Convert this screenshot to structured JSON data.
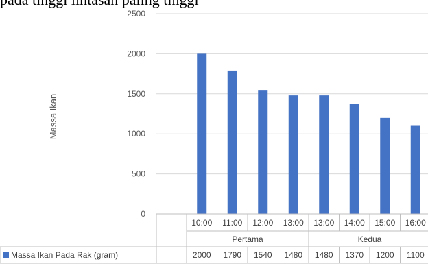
{
  "header": {
    "caption": "pada tinggi lintasan paling tinggi"
  },
  "chart_data": {
    "type": "bar",
    "ylabel": "Massa Ikan",
    "ylim": [
      0,
      2500
    ],
    "yticks": [
      0,
      500,
      1000,
      1500,
      2000,
      2500
    ],
    "groups": [
      {
        "label": "Pertama",
        "categories": [
          "10:00",
          "11:00",
          "12:00",
          "13:00"
        ]
      },
      {
        "label": "Kedua",
        "categories": [
          "13:00",
          "14:00",
          "15:00",
          "16:00"
        ]
      }
    ],
    "categories": [
      "10:00",
      "11:00",
      "12:00",
      "13:00",
      "13:00",
      "14:00",
      "15:00",
      "16:00"
    ],
    "series": [
      {
        "name": "Massa Ikan Pada Rak (gram)",
        "color": "#4472c4",
        "values": [
          2000,
          1790,
          1540,
          1480,
          1480,
          1370,
          1200,
          1100
        ]
      }
    ],
    "grid": true,
    "legend": "data-table"
  }
}
